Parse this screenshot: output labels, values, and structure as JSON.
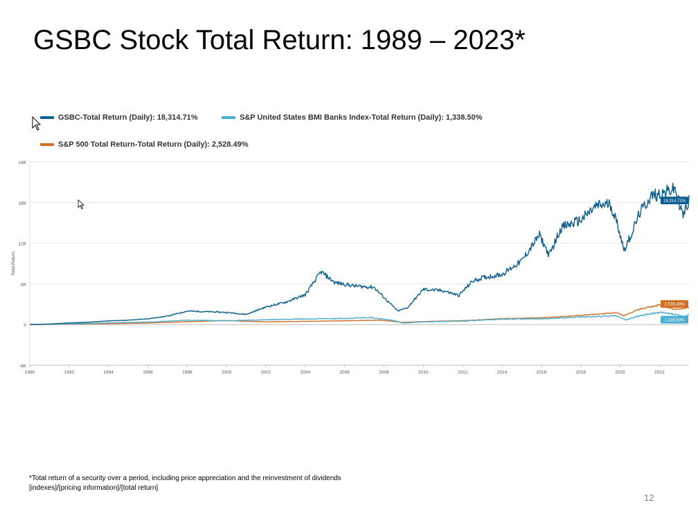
{
  "slide": {
    "title": "GSBC Stock Total Return: 1989 – 2023*",
    "footnote_line1": "*Total return of a security over a period, including price appreciation and the reinvestment of dividends",
    "footnote_line2": "[indexes]/[pricing information]/[total return]",
    "page_number": "12"
  },
  "colors": {
    "gsbc": "#0b5e8e",
    "banks": "#4aaed0",
    "sp500": "#d36f22",
    "grid": "#e6e6e6",
    "axis_text": "#555555"
  },
  "chart_data": {
    "type": "line",
    "title": "",
    "xlabel": "",
    "ylabel": "Total Return",
    "xlim": [
      1990,
      2023.5
    ],
    "ylim": [
      -6000,
      24000
    ],
    "grid": true,
    "legend_position": "top-left",
    "x_ticks": [
      "1990",
      "1992",
      "1994",
      "1996",
      "1998",
      "2000",
      "2002",
      "2004",
      "2006",
      "2008",
      "2010",
      "2012",
      "2014",
      "2016",
      "2018",
      "2020",
      "2022"
    ],
    "y_ticks": [
      {
        "value": -6000,
        "label": "-6K"
      },
      {
        "value": 0,
        "label": "0"
      },
      {
        "value": 6000,
        "label": "6K"
      },
      {
        "value": 12000,
        "label": "12K"
      },
      {
        "value": 18000,
        "label": "18K"
      },
      {
        "value": 24000,
        "label": "24K"
      }
    ],
    "series": [
      {
        "name": "GSBC-Total Return (Daily)",
        "legend_value": "18,314.71%",
        "end_label": "18,314.71%",
        "color_key": "gsbc",
        "points": [
          [
            1990,
            0
          ],
          [
            1991,
            80
          ],
          [
            1992,
            250
          ],
          [
            1993,
            350
          ],
          [
            1994,
            550
          ],
          [
            1995,
            650
          ],
          [
            1996,
            850
          ],
          [
            1997,
            1250
          ],
          [
            1998,
            2000
          ],
          [
            1999,
            1900
          ],
          [
            2000,
            1800
          ],
          [
            2001,
            1500
          ],
          [
            2002,
            2600
          ],
          [
            2003,
            3300
          ],
          [
            2004,
            4400
          ],
          [
            2004.8,
            7800
          ],
          [
            2005.5,
            6200
          ],
          [
            2006.5,
            5700
          ],
          [
            2007.5,
            5500
          ],
          [
            2008,
            4000
          ],
          [
            2008.7,
            2000
          ],
          [
            2009.2,
            2500
          ],
          [
            2010,
            5200
          ],
          [
            2011,
            5000
          ],
          [
            2011.8,
            4300
          ],
          [
            2012.5,
            6400
          ],
          [
            2013,
            6900
          ],
          [
            2014,
            7400
          ],
          [
            2015,
            9400
          ],
          [
            2015.9,
            13200
          ],
          [
            2016.4,
            10200
          ],
          [
            2017,
            14300
          ],
          [
            2018,
            15400
          ],
          [
            2018.8,
            17500
          ],
          [
            2019.5,
            17800
          ],
          [
            2019.9,
            14500
          ],
          [
            2020.2,
            11000
          ],
          [
            2020.6,
            13500
          ],
          [
            2021,
            16500
          ],
          [
            2021.6,
            19000
          ],
          [
            2022.3,
            19500
          ],
          [
            2022.8,
            20000
          ],
          [
            2023.2,
            16000
          ],
          [
            2023.5,
            18314
          ]
        ]
      },
      {
        "name": "S&P United States BMI Banks Index-Total Return (Daily)",
        "legend_value": "1,338.50%",
        "end_label": "1,338.50%",
        "color_key": "banks",
        "points": [
          [
            1990,
            0
          ],
          [
            1992,
            120
          ],
          [
            1994,
            250
          ],
          [
            1996,
            380
          ],
          [
            1998,
            650
          ],
          [
            2000,
            560
          ],
          [
            2002,
            720
          ],
          [
            2004,
            830
          ],
          [
            2006,
            900
          ],
          [
            2007.3,
            1050
          ],
          [
            2008.5,
            600
          ],
          [
            2009,
            220
          ],
          [
            2010,
            400
          ],
          [
            2012,
            520
          ],
          [
            2014,
            800
          ],
          [
            2016,
            850
          ],
          [
            2018,
            1100
          ],
          [
            2019.8,
            1300
          ],
          [
            2020.3,
            700
          ],
          [
            2021,
            1300
          ],
          [
            2022,
            1800
          ],
          [
            2022.8,
            1500
          ],
          [
            2023.2,
            1200
          ],
          [
            2023.5,
            1338
          ]
        ]
      },
      {
        "name": "S&P 500 Total Return-Total Return (Daily)",
        "legend_value": "2,528.49%",
        "end_label": "2,528.49%",
        "color_key": "sp500",
        "points": [
          [
            1990,
            0
          ],
          [
            1992,
            80
          ],
          [
            1994,
            130
          ],
          [
            1996,
            230
          ],
          [
            1998,
            420
          ],
          [
            2000,
            600
          ],
          [
            2002,
            400
          ],
          [
            2004,
            480
          ],
          [
            2006,
            560
          ],
          [
            2007.8,
            650
          ],
          [
            2009,
            320
          ],
          [
            2010,
            450
          ],
          [
            2012,
            580
          ],
          [
            2014,
            880
          ],
          [
            2016,
            1000
          ],
          [
            2018,
            1350
          ],
          [
            2019.8,
            1750
          ],
          [
            2020.2,
            1300
          ],
          [
            2021,
            2300
          ],
          [
            2022,
            2900
          ],
          [
            2022.8,
            2200
          ],
          [
            2023.5,
            2528
          ]
        ]
      }
    ]
  }
}
